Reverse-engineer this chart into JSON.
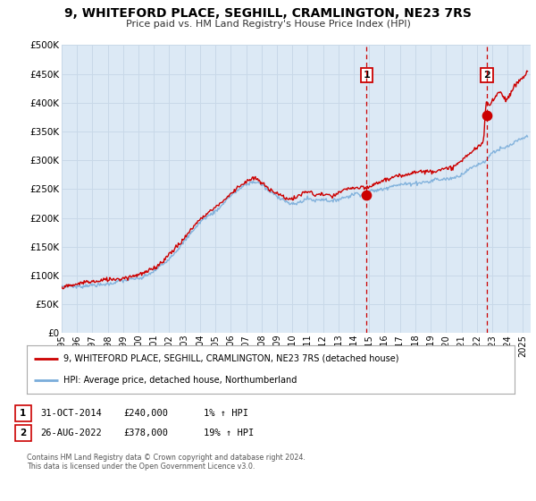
{
  "title": "9, WHITEFORD PLACE, SEGHILL, CRAMLINGTON, NE23 7RS",
  "subtitle": "Price paid vs. HM Land Registry's House Price Index (HPI)",
  "ylim": [
    0,
    500000
  ],
  "xlim_start": 1995.0,
  "xlim_end": 2025.5,
  "yticks": [
    0,
    50000,
    100000,
    150000,
    200000,
    250000,
    300000,
    350000,
    400000,
    450000,
    500000
  ],
  "ytick_labels": [
    "£0",
    "£50K",
    "£100K",
    "£150K",
    "£200K",
    "£250K",
    "£300K",
    "£350K",
    "£400K",
    "£450K",
    "£500K"
  ],
  "xticks": [
    1995,
    1996,
    1997,
    1998,
    1999,
    2000,
    2001,
    2002,
    2003,
    2004,
    2005,
    2006,
    2007,
    2008,
    2009,
    2010,
    2011,
    2012,
    2013,
    2014,
    2015,
    2016,
    2017,
    2018,
    2019,
    2020,
    2021,
    2022,
    2023,
    2024,
    2025
  ],
  "hpi_color": "#7aadda",
  "price_color": "#cc0000",
  "point1_x": 2014.83,
  "point1_y": 240000,
  "point2_x": 2022.65,
  "point2_y": 378000,
  "vline1_x": 2014.83,
  "vline2_x": 2022.65,
  "legend_house_label": "9, WHITEFORD PLACE, SEGHILL, CRAMLINGTON, NE23 7RS (detached house)",
  "legend_hpi_label": "HPI: Average price, detached house, Northumberland",
  "bg_color": "#dce9f5",
  "bg_color_right": "#ccdff0",
  "fig_bg_color": "#ffffff",
  "grid_color": "#c8d8e8",
  "footnote": "Contains HM Land Registry data © Crown copyright and database right 2024.\nThis data is licensed under the Open Government Licence v3.0."
}
